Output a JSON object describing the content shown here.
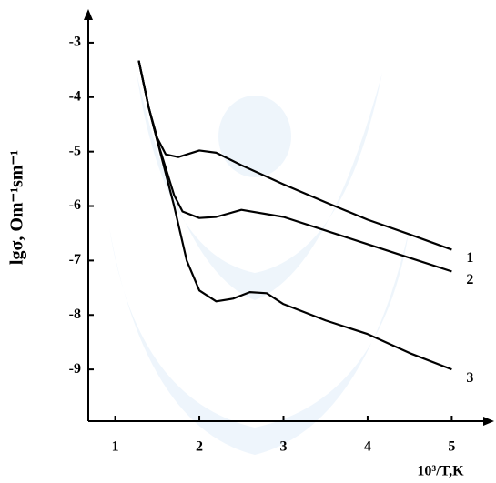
{
  "chart_data": {
    "type": "line",
    "x_label": "10³/T,K",
    "y_label": "lgσ, Om⁻¹sm⁻¹",
    "xlim": [
      0.68,
      5.45
    ],
    "xticks": [
      1,
      2,
      3,
      4,
      5
    ],
    "ylim": [
      -9.95,
      -2.45
    ],
    "yticks": [
      -3,
      -4,
      -5,
      -6,
      -7,
      -8,
      -9
    ],
    "series": [
      {
        "name": "1",
        "color": "#000000",
        "x": [
          1.28,
          1.4,
          1.5,
          1.6,
          1.75,
          2.0,
          2.2,
          2.5,
          3.0,
          3.5,
          4.0,
          4.5,
          5.0
        ],
        "values": [
          -3.33,
          -4.2,
          -4.75,
          -5.05,
          -5.1,
          -4.98,
          -5.02,
          -5.25,
          -5.6,
          -5.93,
          -6.25,
          -6.52,
          -6.8
        ]
      },
      {
        "name": "2",
        "color": "#000000",
        "x": [
          1.28,
          1.4,
          1.5,
          1.6,
          1.7,
          1.8,
          2.0,
          2.2,
          2.5,
          3.0,
          3.5,
          4.0,
          4.5,
          5.0
        ],
        "values": [
          -3.33,
          -4.2,
          -4.8,
          -5.3,
          -5.8,
          -6.1,
          -6.22,
          -6.2,
          -6.07,
          -6.2,
          -6.45,
          -6.7,
          -6.95,
          -7.2
        ]
      },
      {
        "name": "3",
        "color": "#000000",
        "x": [
          1.28,
          1.4,
          1.5,
          1.7,
          1.85,
          2.0,
          2.2,
          2.4,
          2.6,
          2.8,
          3.0,
          3.5,
          4.0,
          4.5,
          5.0
        ],
        "values": [
          -3.33,
          -4.2,
          -4.8,
          -6.0,
          -7.0,
          -7.55,
          -7.75,
          -7.7,
          -7.58,
          -7.6,
          -7.8,
          -8.1,
          -8.35,
          -8.7,
          -9.0
        ]
      }
    ]
  }
}
